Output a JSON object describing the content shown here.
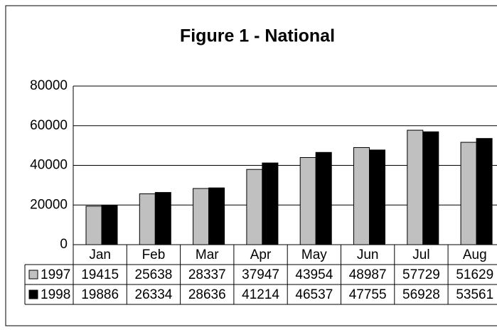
{
  "chart_data": {
    "type": "bar",
    "title": "Figure 1 - National",
    "categories": [
      "Jan",
      "Feb",
      "Mar",
      "Apr",
      "May",
      "Jun",
      "Jul",
      "Aug"
    ],
    "series": [
      {
        "name": "1997",
        "color": "#c0c0c0",
        "values": [
          19415,
          25638,
          28337,
          37947,
          43954,
          48987,
          57729,
          51629
        ]
      },
      {
        "name": "1998",
        "color": "#000000",
        "values": [
          19886,
          26334,
          28636,
          41214,
          46537,
          47755,
          56928,
          53561
        ]
      }
    ],
    "ylim": [
      0,
      80000
    ],
    "yticks": [
      0,
      20000,
      40000,
      60000,
      80000
    ],
    "grid": true
  }
}
